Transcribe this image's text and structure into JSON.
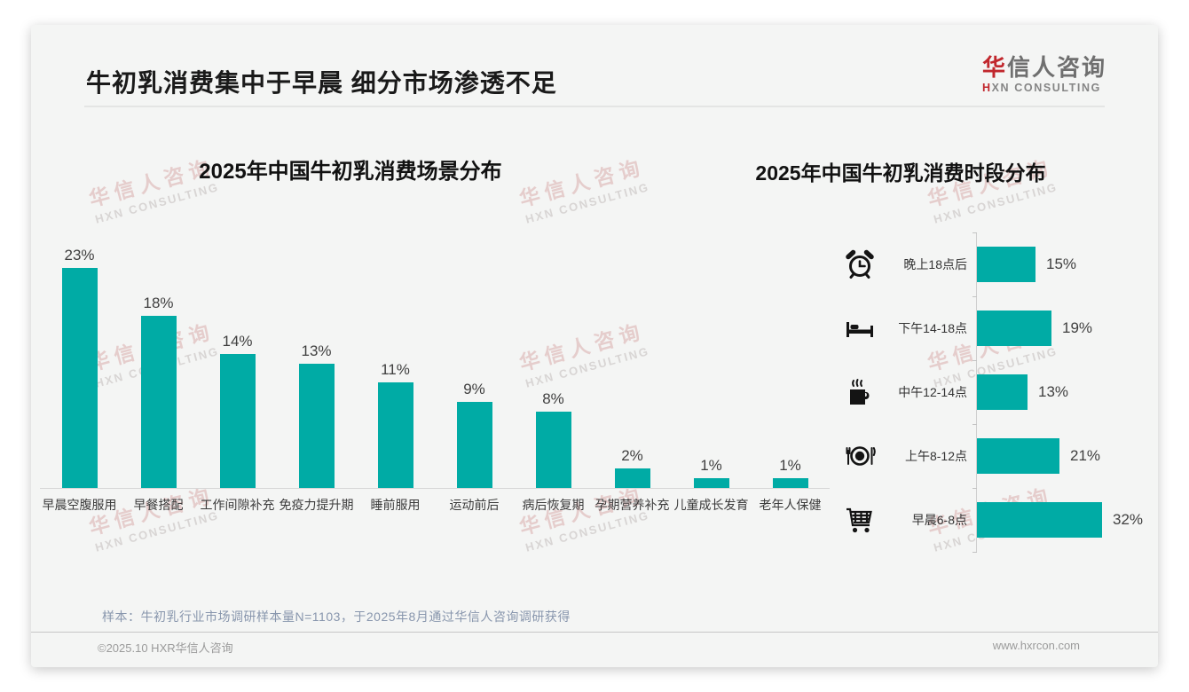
{
  "header": {
    "title": "牛初乳消费集中于早晨 细分市场渗透不足"
  },
  "logo": {
    "cn_first": "华",
    "cn_rest": "信人咨询",
    "en_first": "H",
    "en_rest": "XN CONSULTING"
  },
  "watermark": {
    "line1": "华信人咨询",
    "line2": "HXN CONSULTING"
  },
  "chart_data": [
    {
      "type": "bar",
      "orientation": "vertical",
      "title": "2025年中国牛初乳消费场景分布",
      "categories": [
        "早晨空腹服用",
        "早餐搭配",
        "工作间隙补充",
        "免疫力提升期",
        "睡前服用",
        "运动前后",
        "病后恢复期",
        "孕期营养补充",
        "儿童成长发育",
        "老年人保健"
      ],
      "values": [
        23,
        18,
        14,
        13,
        11,
        9,
        8,
        2,
        1,
        1
      ],
      "value_labels": [
        "23%",
        "18%",
        "14%",
        "13%",
        "11%",
        "9%",
        "8%",
        "2%",
        "1%",
        "1%"
      ],
      "unit": "%",
      "bar_color": "#00aba5",
      "ylim": [
        0,
        25
      ],
      "grid": false,
      "legend": "none"
    },
    {
      "type": "bar",
      "orientation": "horizontal",
      "title": "2025年中国牛初乳消费时段分布",
      "categories": [
        "晚上18点后",
        "下午14-18点",
        "中午12-14点",
        "上午8-12点",
        "早晨6-8点"
      ],
      "values": [
        15,
        19,
        13,
        21,
        32
      ],
      "value_labels": [
        "15%",
        "19%",
        "13%",
        "21%",
        "32%"
      ],
      "icons": [
        "alarm-clock-icon",
        "bed-icon",
        "coffee-icon",
        "dining-icon",
        "cart-icon"
      ],
      "unit": "%",
      "bar_color": "#00aba5",
      "xlim": [
        0,
        35
      ],
      "grid": false,
      "legend": "none"
    }
  ],
  "footnote": "样本：牛初乳行业市场调研样本量N=1103，于2025年8月通过华信人咨询调研获得",
  "footer": {
    "copyright": "©2025.10 HXR华信人咨询",
    "website": "www.hxrcon.com"
  },
  "colors": {
    "accent": "#00aba5",
    "brand_red": "#c1272d",
    "note_text": "#8896ad"
  }
}
